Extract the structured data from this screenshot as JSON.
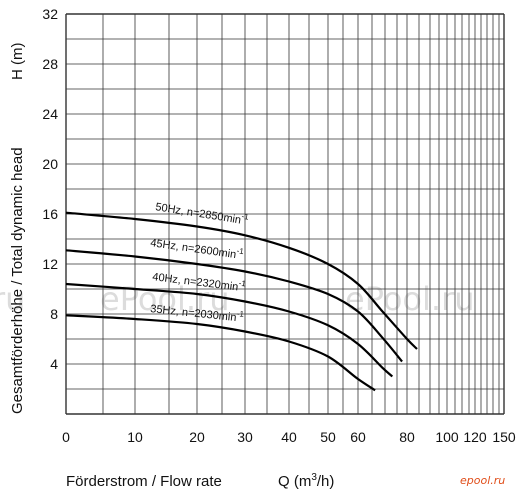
{
  "chart_data": {
    "type": "line",
    "title": "",
    "ylabel": "Gesamtförderhöhe / Total dynamic head",
    "ylabel_unit": "H (m)",
    "xlabel": "Förderstrom / Flow rate",
    "xlabel_unit_prefix": "Q (m",
    "xlabel_unit_sup": "3",
    "xlabel_unit_suffix": "/h)",
    "x_ticks": [
      "0",
      "10",
      "20",
      "30",
      "40",
      "50",
      "60",
      "80",
      "100",
      "120",
      "150"
    ],
    "y_ticks": [
      "4",
      "8",
      "12",
      "16",
      "20",
      "24",
      "28",
      "32"
    ],
    "ylim": [
      0,
      32
    ],
    "grid": true,
    "series": [
      {
        "name": "50Hz,  n=2850min",
        "name_sup": "-1",
        "x": [
          0,
          10,
          20,
          30,
          40,
          50,
          60,
          70,
          80,
          85
        ],
        "y": [
          16.1,
          15.6,
          15.0,
          14.3,
          13.3,
          12.0,
          10.4,
          8.2,
          6.0,
          5.2
        ]
      },
      {
        "name": "45Hz,  n=2600min",
        "name_sup": "-1",
        "x": [
          0,
          10,
          20,
          30,
          40,
          50,
          60,
          70,
          78
        ],
        "y": [
          13.1,
          12.6,
          12.0,
          11.4,
          10.6,
          9.6,
          8.2,
          6.1,
          4.2
        ]
      },
      {
        "name": "40Hz,  n=2320min",
        "name_sup": "-1",
        "x": [
          0,
          10,
          20,
          30,
          40,
          50,
          60,
          70,
          74
        ],
        "y": [
          10.4,
          10.0,
          9.6,
          9.0,
          8.2,
          7.1,
          5.6,
          3.7,
          3.0
        ]
      },
      {
        "name": "35Hz,  n=2030min",
        "name_sup": "-1",
        "x": [
          0,
          10,
          20,
          30,
          40,
          50,
          60,
          67
        ],
        "y": [
          7.9,
          7.6,
          7.2,
          6.6,
          5.8,
          4.6,
          2.8,
          1.9
        ]
      }
    ]
  },
  "watermarks": {
    "center_left": "ePool.ru",
    "center_right": "ePool.ru",
    "edge_left": "ru",
    "corner": "epool.ru"
  }
}
